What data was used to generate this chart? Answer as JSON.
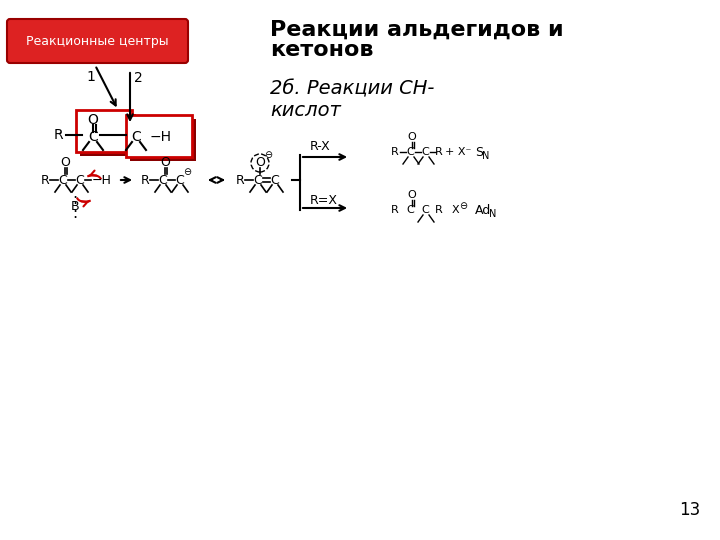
{
  "title": "Реакции альдегидов и\nкетонов",
  "subtitle": "2б. Реакции СН-\nкислот",
  "label_box": "Реакционные центры",
  "page_number": "13",
  "bg_color": "#ffffff",
  "box_color_red": "#cc0000",
  "box_fill_light": "#f5c6c6",
  "box_dark": "#7a0000"
}
